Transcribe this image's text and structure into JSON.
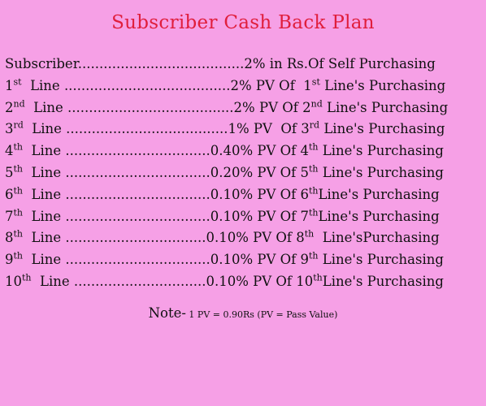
{
  "page": {
    "background": "#f6a0e6",
    "title_color": "#e01e3c"
  },
  "title": "Subscriber Cash Back  Plan",
  "rows": [
    {
      "segments": [
        {
          "t": "Subscriber.......................................2% in Rs.Of Self Purchasing"
        }
      ]
    },
    {
      "segments": [
        {
          "t": "1"
        },
        {
          "t": "st",
          "sup": true
        },
        {
          "t": "  Line .......................................2% PV Of  1"
        },
        {
          "t": "st",
          "sup": true
        },
        {
          "t": " Line's Purchasing"
        }
      ]
    },
    {
      "segments": [
        {
          "t": "2"
        },
        {
          "t": "nd",
          "sup": true
        },
        {
          "t": "  Line .......................................2% PV Of 2"
        },
        {
          "t": "nd",
          "sup": true
        },
        {
          "t": " Line's Purchasing"
        }
      ]
    },
    {
      "segments": [
        {
          "t": "3"
        },
        {
          "t": "rd",
          "sup": true
        },
        {
          "t": "  Line ......................................1% PV  Of 3"
        },
        {
          "t": "rd",
          "sup": true
        },
        {
          "t": " Line's Purchasing"
        }
      ]
    },
    {
      "segments": [
        {
          "t": "4"
        },
        {
          "t": "th",
          "sup": true
        },
        {
          "t": "  Line ..................................0.40% PV Of 4"
        },
        {
          "t": "th",
          "sup": true
        },
        {
          "t": " Line's Purchasing"
        }
      ]
    },
    {
      "segments": [
        {
          "t": "5"
        },
        {
          "t": "th",
          "sup": true
        },
        {
          "t": "  Line ..................................0.20% PV Of 5"
        },
        {
          "t": "th",
          "sup": true
        },
        {
          "t": " Line's Purchasing"
        }
      ]
    },
    {
      "segments": [
        {
          "t": "6"
        },
        {
          "t": "th",
          "sup": true
        },
        {
          "t": "  Line ..................................0.10% PV Of 6"
        },
        {
          "t": "th",
          "sup": true
        },
        {
          "t": "Line's Purchasing"
        }
      ]
    },
    {
      "segments": [
        {
          "t": "7"
        },
        {
          "t": "th",
          "sup": true
        },
        {
          "t": "  Line ..................................0.10% PV Of 7"
        },
        {
          "t": "th",
          "sup": true
        },
        {
          "t": "Line's Purchasing"
        }
      ]
    },
    {
      "segments": [
        {
          "t": "8"
        },
        {
          "t": "th",
          "sup": true
        },
        {
          "t": "  Line .................................0.10% PV Of 8"
        },
        {
          "t": "th",
          "sup": true
        },
        {
          "t": "  Line'sPurchasing"
        }
      ]
    },
    {
      "segments": [
        {
          "t": "9"
        },
        {
          "t": "th",
          "sup": true
        },
        {
          "t": "  Line ..................................0.10% PV Of 9"
        },
        {
          "t": "th",
          "sup": true
        },
        {
          "t": " Line's Purchasing"
        }
      ]
    },
    {
      "segments": [
        {
          "t": "10"
        },
        {
          "t": "th",
          "sup": true
        },
        {
          "t": "  Line ...............................0.10% PV Of 10"
        },
        {
          "t": "th",
          "sup": true
        },
        {
          "t": "Line's Purchasing"
        }
      ]
    }
  ],
  "note": {
    "label": "Note-",
    "text": " 1 PV = 0.90Rs (PV = Pass Value)"
  }
}
